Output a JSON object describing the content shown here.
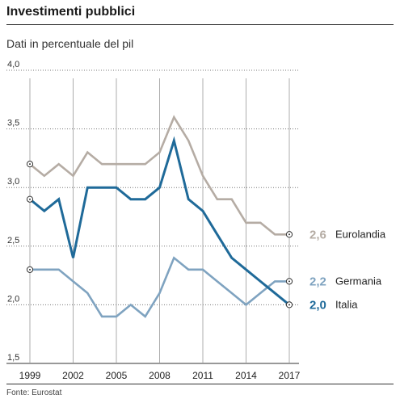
{
  "title": "Investimenti pubblici",
  "subtitle": "Dati in percentuale del pil",
  "source": "Fonte: Eurostat",
  "chart_data": {
    "type": "line",
    "title": "Investimenti pubblici",
    "subtitle": "Dati in percentuale del pil",
    "xlabel": "",
    "ylabel": "",
    "x": [
      1999,
      2000,
      2001,
      2002,
      2003,
      2004,
      2005,
      2006,
      2007,
      2008,
      2009,
      2010,
      2011,
      2012,
      2013,
      2014,
      2015,
      2016,
      2017
    ],
    "xticks": [
      "1999",
      "2002",
      "2005",
      "2008",
      "2011",
      "2014",
      "2017"
    ],
    "yticks": [
      "1,5",
      "2,0",
      "2,5",
      "3,0",
      "3,5",
      "4,0"
    ],
    "ylim": [
      1.5,
      4.0
    ],
    "grid": "horizontal dotted",
    "series": [
      {
        "name": "Eurolandia",
        "label": "2,6",
        "color": "#b5aca4",
        "values": [
          3.2,
          3.1,
          3.2,
          3.1,
          3.3,
          3.2,
          3.2,
          3.2,
          3.2,
          3.3,
          3.6,
          3.4,
          3.1,
          2.9,
          2.9,
          2.7,
          2.7,
          2.6,
          2.6
        ]
      },
      {
        "name": "Germania",
        "label": "2,2",
        "color": "#7fa3c0",
        "values": [
          2.3,
          2.3,
          2.3,
          2.2,
          2.1,
          1.9,
          1.9,
          2.0,
          1.9,
          2.1,
          2.4,
          2.3,
          2.3,
          2.2,
          2.1,
          2.0,
          2.1,
          2.2,
          2.2
        ]
      },
      {
        "name": "Italia",
        "label": "2,0",
        "color": "#1f6a99",
        "values": [
          2.9,
          2.8,
          2.9,
          2.4,
          3.0,
          3.0,
          3.0,
          2.9,
          2.9,
          3.0,
          3.4,
          2.9,
          2.8,
          2.6,
          2.4,
          2.3,
          2.2,
          2.1,
          2.0
        ]
      }
    ]
  }
}
